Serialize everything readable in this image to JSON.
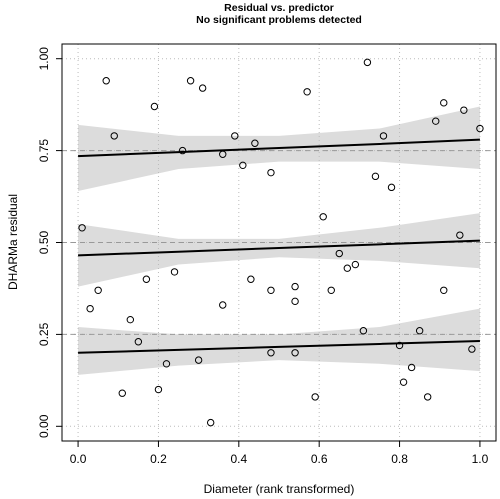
{
  "chart_data": {
    "type": "scatter",
    "title": "Residual vs. predictor",
    "subtitle": "No significant problems detected",
    "x_label": "Diameter (rank transformed)",
    "y_label": "DHARMa residual",
    "x": [
      0.07,
      0.09,
      0.19,
      0.28,
      0.31,
      0.26,
      0.36,
      0.39,
      0.41,
      0.44,
      0.48,
      0.57,
      0.72,
      0.74,
      0.76,
      0.78,
      0.89,
      0.91,
      0.96,
      1.0,
      0.01,
      0.03,
      0.05,
      0.11,
      0.13,
      0.15,
      0.17,
      0.2,
      0.22,
      0.24,
      0.3,
      0.33,
      0.36,
      0.43,
      0.48,
      0.48,
      0.54,
      0.54,
      0.54,
      0.59,
      0.61,
      0.63,
      0.65,
      0.67,
      0.69,
      0.71,
      0.8,
      0.81,
      0.83,
      0.85,
      0.87,
      0.91,
      0.95,
      0.98
    ],
    "values": [
      0.94,
      0.79,
      0.87,
      0.94,
      0.92,
      0.75,
      0.74,
      0.79,
      0.71,
      0.77,
      0.69,
      0.91,
      0.99,
      0.68,
      0.79,
      0.65,
      0.83,
      0.88,
      0.86,
      0.81,
      0.54,
      0.32,
      0.37,
      0.09,
      0.29,
      0.23,
      0.4,
      0.1,
      0.17,
      0.42,
      0.18,
      0.01,
      0.33,
      0.4,
      0.37,
      0.2,
      0.38,
      0.34,
      0.2,
      0.08,
      0.57,
      0.37,
      0.47,
      0.43,
      0.44,
      0.26,
      0.22,
      0.12,
      0.16,
      0.26,
      0.08,
      0.37,
      0.52,
      0.21
    ],
    "point_color": "#000000",
    "quantile_lines": [
      {
        "x": [
          0,
          0.25,
          0.5,
          0.75,
          1
        ],
        "values": [
          0.2,
          0.208,
          0.216,
          0.224,
          0.232
        ],
        "lower": [
          0.14,
          0.165,
          0.18,
          0.17,
          0.15
        ],
        "upper": [
          0.27,
          0.25,
          0.25,
          0.27,
          0.32
        ]
      },
      {
        "x": [
          0,
          0.25,
          0.5,
          0.75,
          1
        ],
        "values": [
          0.465,
          0.475,
          0.485,
          0.495,
          0.505
        ],
        "lower": [
          0.38,
          0.44,
          0.46,
          0.45,
          0.43
        ],
        "upper": [
          0.55,
          0.51,
          0.51,
          0.54,
          0.58
        ]
      },
      {
        "x": [
          0,
          0.25,
          0.5,
          0.75,
          1
        ],
        "values": [
          0.735,
          0.746,
          0.757,
          0.768,
          0.78
        ],
        "lower": [
          0.64,
          0.7,
          0.72,
          0.72,
          0.7
        ],
        "upper": [
          0.82,
          0.79,
          0.79,
          0.81,
          0.87
        ]
      }
    ],
    "line_color": "#000000",
    "band_color": "#dcdcdc",
    "reference_lines": [
      0.25,
      0.5,
      0.75
    ],
    "xlim": [
      -0.04,
      1.04
    ],
    "ylim": [
      -0.04,
      1.04
    ],
    "xticks": [
      {
        "value": 0,
        "label": "0.0"
      },
      0.2,
      0.4,
      0.6,
      0.8,
      {
        "value": 1,
        "label": "1.0"
      }
    ],
    "yticks": [
      {
        "value": 0,
        "label": "0.00"
      },
      0.25,
      {
        "value": 0.5,
        "label": "0.50"
      },
      0.75,
      {
        "value": 1,
        "label": "1.00"
      }
    ],
    "grid": true
  }
}
